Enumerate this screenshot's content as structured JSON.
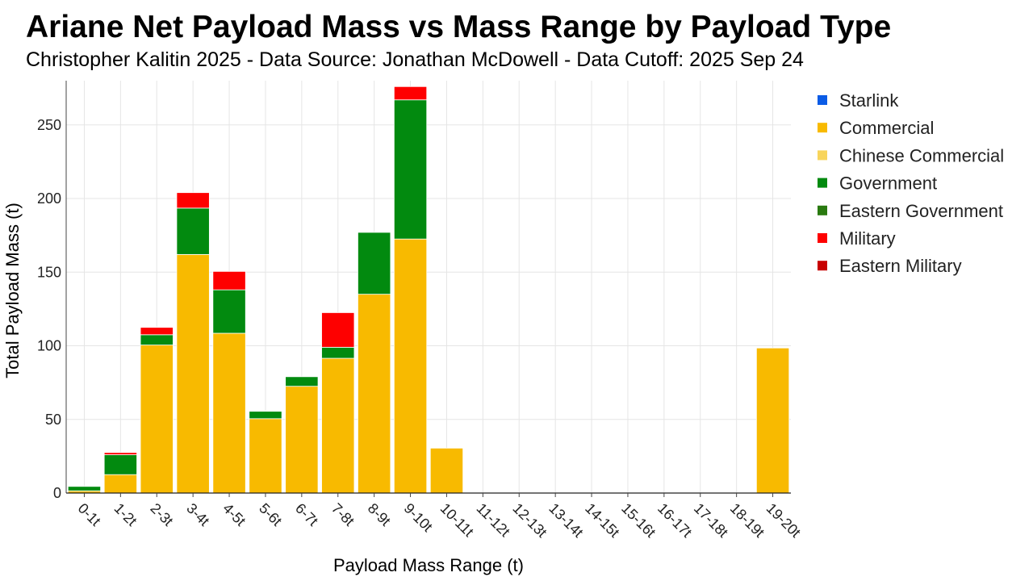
{
  "title": "Ariane Net Payload Mass vs Mass Range by Payload Type",
  "subtitle": "Christopher Kalitin 2025 - Data Source: Jonathan McDowell - Data Cutoff: 2025 Sep 24",
  "chart_data": {
    "type": "bar",
    "stacked": true,
    "xlabel": "Payload Mass Range (t)",
    "ylabel": "Total Payload Mass (t)",
    "ylim": [
      0,
      280
    ],
    "yticks": [
      0,
      50,
      100,
      150,
      200,
      250
    ],
    "grid": true,
    "legend_position": "right",
    "categories": [
      "0-1t",
      "1-2t",
      "2-3t",
      "3-4t",
      "4-5t",
      "5-6t",
      "6-7t",
      "7-8t",
      "8-9t",
      "9-10t",
      "10-11t",
      "11-12t",
      "12-13t",
      "13-14t",
      "14-15t",
      "15-16t",
      "16-17t",
      "17-18t",
      "18-19t",
      "19-20t"
    ],
    "series": [
      {
        "name": "Starlink",
        "color": "#0b5ce6",
        "values": [
          0,
          0,
          0,
          0,
          0,
          0,
          0,
          0,
          0,
          0,
          0,
          0,
          0,
          0,
          0,
          0,
          0,
          0,
          0,
          0
        ]
      },
      {
        "name": "Commercial",
        "color": "#f8ba00",
        "values": [
          1.5,
          12.5,
          100.5,
          162,
          108.5,
          50.5,
          72.5,
          91.5,
          135,
          172.5,
          30.5,
          0,
          0,
          0,
          0,
          0,
          0,
          0,
          0,
          98.5
        ]
      },
      {
        "name": "Chinese Commercial",
        "color": "#f8d55c",
        "values": [
          0,
          0,
          0,
          0,
          0,
          0,
          0,
          0,
          0,
          0,
          0,
          0,
          0,
          0,
          0,
          0,
          0,
          0,
          0,
          0
        ]
      },
      {
        "name": "Government",
        "color": "#028a0f",
        "values": [
          3,
          13.5,
          7,
          31.5,
          29.5,
          5,
          6.5,
          7.5,
          42,
          94.5,
          0,
          0,
          0,
          0,
          0,
          0,
          0,
          0,
          0,
          0
        ]
      },
      {
        "name": "Eastern Government",
        "color": "#2a7a10",
        "values": [
          0,
          0,
          0,
          0,
          0,
          0,
          0,
          0,
          0,
          0,
          0,
          0,
          0,
          0,
          0,
          0,
          0,
          0,
          0,
          0
        ]
      },
      {
        "name": "Military",
        "color": "#fe0000",
        "values": [
          0,
          1.5,
          5,
          10.5,
          12.5,
          0,
          0,
          23.5,
          0,
          9,
          0,
          0,
          0,
          0,
          0,
          0,
          0,
          0,
          0,
          0
        ]
      },
      {
        "name": "Eastern Military",
        "color": "#c80000",
        "values": [
          0,
          0,
          0,
          0,
          0,
          0,
          0,
          0,
          0,
          0,
          0,
          0,
          0,
          0,
          0,
          0,
          0,
          0,
          0,
          0
        ]
      }
    ]
  }
}
